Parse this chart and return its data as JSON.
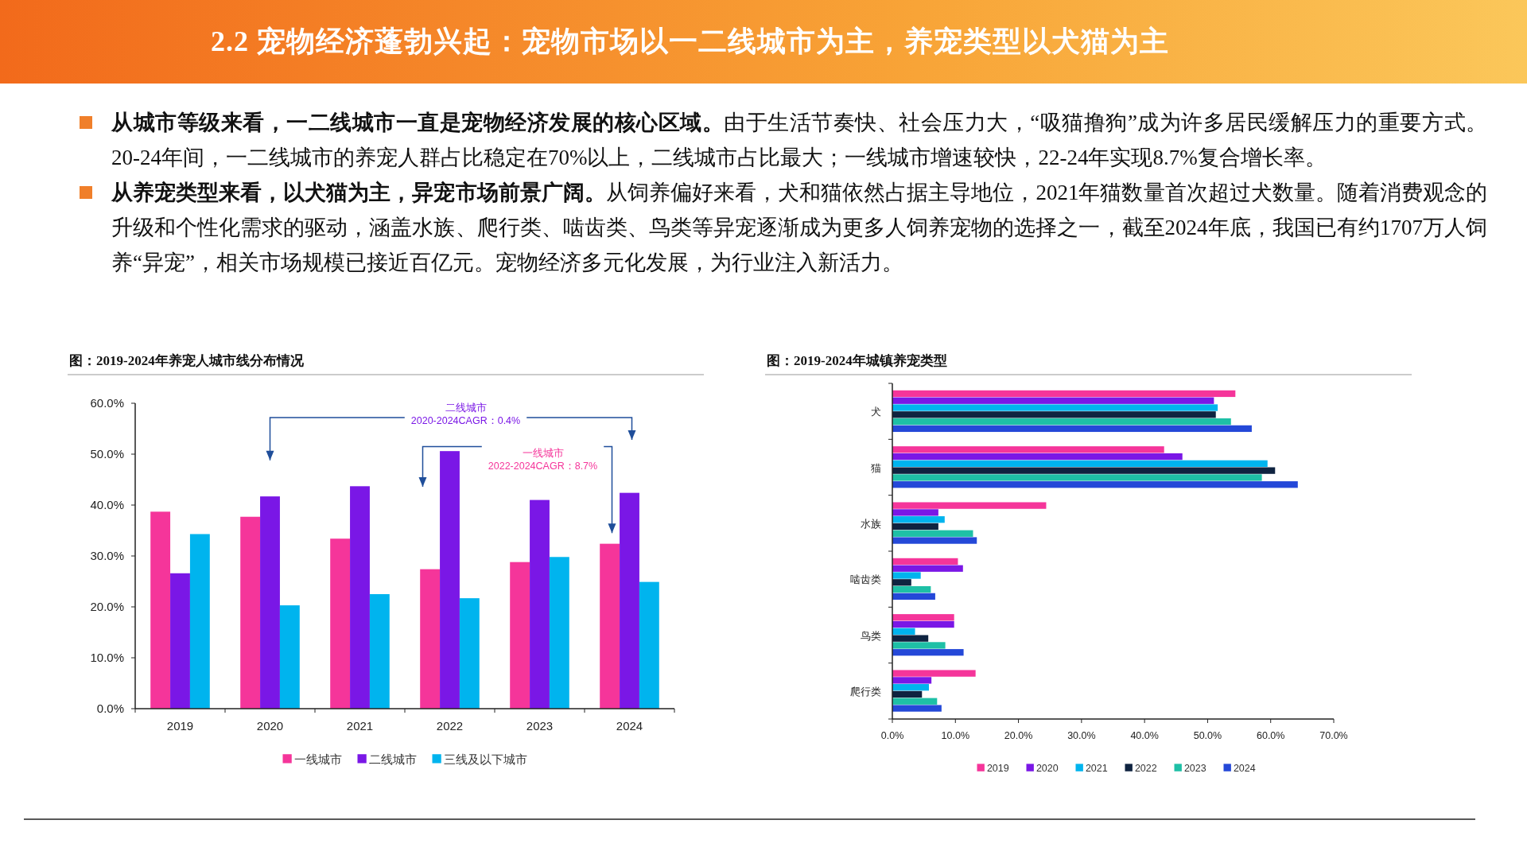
{
  "chart_data": [
    {
      "type": "other",
      "title": "2.2 宠物经济蓬勃兴起：宠物市场以一二线城市为主，养宠类型以犬猫为主",
      "annotations": [
        "从城市等级来看，一二线城市一直是宠物经济发展的核心区域。",
        "由于生活节奏快、社会压力大，“吸猫撸狗”成为许多居民缓解压力的重要方式。20-24年间，一二线城市的养宠人群占比稳定在70%以上，二线城市占比最大；一线城市增速较快，22-24年实现8.7%复合增长率。",
        "从养宠类型来看，以犬猫为主，异宠市场前景广阔。",
        "从饲养偏好来看，犬和猫依然占据主导地位，2021年猫数量首次超过犬数量。随着消费观念的升级和个性化需求的驱动，涵盖水族、爬行类、啮齿类、鸟类等异宠逐渐成为更多人饲养宠物的选择之一，截至2024年底，我国已有约1707万人饲养“异宠”，相关市场规模已接近百亿元。宠物经济多元化发展，为行业注入新活力。"
      ]
    },
    {
      "type": "bar",
      "title": "图：2019-2024年养宠人城市线分布情况",
      "categories": [
        "2019",
        "2020",
        "2021",
        "2022",
        "2023",
        "2024"
      ],
      "series": [
        {
          "name": "一线城市",
          "color": "#f5359a",
          "values": [
            38.7,
            37.7,
            33.4,
            27.4,
            28.8,
            32.4
          ]
        },
        {
          "name": "二线城市",
          "color": "#7a17e6",
          "values": [
            26.6,
            41.7,
            43.7,
            50.6,
            41.0,
            42.4
          ]
        },
        {
          "name": "三线及以下城市",
          "color": "#00b4ee",
          "values": [
            34.3,
            20.3,
            22.5,
            21.7,
            29.8,
            24.9
          ]
        }
      ],
      "ylim": [
        0,
        60
      ],
      "yticks": [
        {
          "value": 0,
          "label": "0.0%"
        },
        {
          "value": 10,
          "label": "10.0%"
        },
        {
          "value": 20,
          "label": "20.0%"
        },
        {
          "value": 30,
          "label": "30.0%"
        },
        {
          "value": 40,
          "label": "40.0%"
        },
        {
          "value": 50,
          "label": "50.0%"
        },
        {
          "value": 60,
          "label": "60.0%"
        }
      ],
      "grid": false,
      "legend": "bottom",
      "annotations": [
        "二线城市\n2020-2024CAGR：0.4%",
        "一线城市\n2022-2024CAGR：8.7%"
      ]
    },
    {
      "type": "bar",
      "orientation": "horizontal",
      "title": "图：2019-2024年城镇养宠类型",
      "categories": [
        "犬",
        "猫",
        "水族",
        "啮齿类",
        "鸟类",
        "爬行类"
      ],
      "series": [
        {
          "name": "2019",
          "color": "#f5359a",
          "values": [
            54.4,
            43.1,
            24.4,
            10.4,
            9.8,
            13.2
          ]
        },
        {
          "name": "2020",
          "color": "#7a17e6",
          "values": [
            51.0,
            46.0,
            7.3,
            11.2,
            9.8,
            6.2
          ]
        },
        {
          "name": "2021",
          "color": "#00b4ee",
          "values": [
            51.6,
            59.5,
            8.3,
            4.5,
            3.6,
            5.8
          ]
        },
        {
          "name": "2022",
          "color": "#0f2340",
          "values": [
            51.3,
            60.7,
            7.3,
            3.0,
            5.7,
            4.7
          ]
        },
        {
          "name": "2023",
          "color": "#1ec0a6",
          "values": [
            53.7,
            58.6,
            12.8,
            6.1,
            8.4,
            7.1
          ]
        },
        {
          "name": "2024",
          "color": "#2448d8",
          "values": [
            57.0,
            64.3,
            13.4,
            6.8,
            11.3,
            7.8
          ]
        }
      ],
      "xlim": [
        0,
        70
      ],
      "xticks": [
        {
          "value": 0,
          "label": "0.0%"
        },
        {
          "value": 10,
          "label": "10.0%"
        },
        {
          "value": 20,
          "label": "20.0%"
        },
        {
          "value": 30,
          "label": "30.0%"
        },
        {
          "value": 40,
          "label": "40.0%"
        },
        {
          "value": 50,
          "label": "50.0%"
        },
        {
          "value": 60,
          "label": "60.0%"
        },
        {
          "value": 70,
          "label": "70.0%"
        }
      ],
      "grid": false,
      "legend": "bottom"
    }
  ]
}
